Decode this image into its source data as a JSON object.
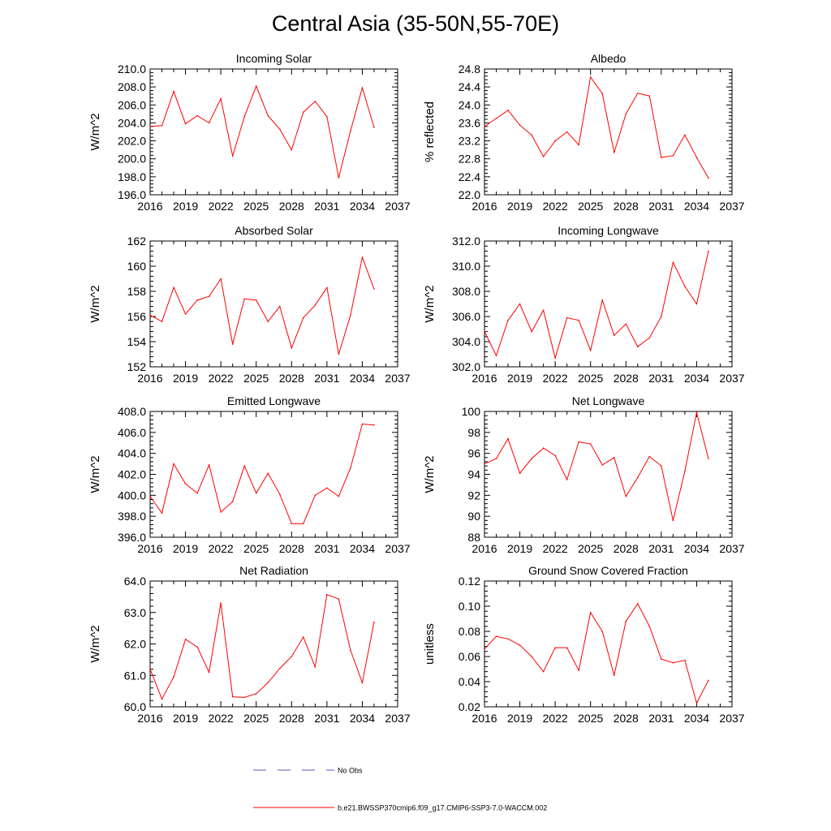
{
  "title": "Central Asia (35-50N,55-70E)",
  "colors": {
    "model": "#ff0000",
    "obs": "#5555cc",
    "axis": "#000000"
  },
  "legend": {
    "obs_label": "No Obs",
    "model_label": "b.e21.BWSSP370cmip6.f09_g17.CMIP6-SSP3-7.0-WACCM.002"
  },
  "chart_data": [
    {
      "type": "line",
      "title": "Incoming Solar",
      "ylabel": "W/m^2",
      "xlim": [
        2016,
        2037
      ],
      "xticks": [
        "2016",
        "2019",
        "2022",
        "2025",
        "2028",
        "2031",
        "2034",
        "2037"
      ],
      "ylim": [
        196,
        210
      ],
      "yticks": [
        "196.0",
        "198.0",
        "200.0",
        "202.0",
        "204.0",
        "206.0",
        "208.0",
        "210.0"
      ],
      "series": [
        {
          "name": "b.e21.BWSSP370cmip6.f09_g17.CMIP6-SSP3-7.0-WACCM.002",
          "x": [
            2016,
            2017,
            2018,
            2019,
            2020,
            2021,
            2022,
            2023,
            2024,
            2025,
            2026,
            2027,
            2028,
            2029,
            2030,
            2031,
            2032,
            2033,
            2034,
            2035
          ],
          "y": [
            203.6,
            203.7,
            207.5,
            203.9,
            204.8,
            204.0,
            206.7,
            200.3,
            204.7,
            208.1,
            204.8,
            203.3,
            201.0,
            205.2,
            206.4,
            204.7,
            197.9,
            203.1,
            207.9,
            203.5
          ]
        }
      ]
    },
    {
      "type": "line",
      "title": "Albedo",
      "ylabel": "% reflected",
      "xlim": [
        2016,
        2037
      ],
      "xticks": [
        "2016",
        "2019",
        "2022",
        "2025",
        "2028",
        "2031",
        "2034",
        "2037"
      ],
      "ylim": [
        22.0,
        24.8
      ],
      "yticks": [
        "22.0",
        "22.4",
        "22.8",
        "23.2",
        "23.6",
        "24.0",
        "24.4",
        "24.8"
      ],
      "series": [
        {
          "name": "b.e21.BWSSP370cmip6.f09_g17.CMIP6-SSP3-7.0-WACCM.002",
          "x": [
            2016,
            2017,
            2018,
            2019,
            2020,
            2021,
            2022,
            2023,
            2024,
            2025,
            2026,
            2027,
            2028,
            2029,
            2030,
            2031,
            2032,
            2033,
            2034,
            2035
          ],
          "y": [
            23.52,
            23.7,
            23.88,
            23.55,
            23.33,
            22.85,
            23.2,
            23.4,
            23.11,
            24.62,
            24.25,
            22.94,
            23.8,
            24.26,
            24.2,
            22.83,
            22.87,
            23.33,
            22.83,
            22.37
          ]
        }
      ]
    },
    {
      "type": "line",
      "title": "Absorbed Solar",
      "ylabel": "W/m^2",
      "xlim": [
        2016,
        2037
      ],
      "xticks": [
        "2016",
        "2019",
        "2022",
        "2025",
        "2028",
        "2031",
        "2034",
        "2037"
      ],
      "ylim": [
        152,
        162
      ],
      "yticks": [
        "152",
        "154",
        "156",
        "158",
        "160",
        "162"
      ],
      "series": [
        {
          "name": "b.e21.BWSSP370cmip6.f09_g17.CMIP6-SSP3-7.0-WACCM.002",
          "x": [
            2016,
            2017,
            2018,
            2019,
            2020,
            2021,
            2022,
            2023,
            2024,
            2025,
            2026,
            2027,
            2028,
            2029,
            2030,
            2031,
            2032,
            2033,
            2034,
            2035
          ],
          "y": [
            156.1,
            155.6,
            158.3,
            156.2,
            157.3,
            157.6,
            159.0,
            153.8,
            157.4,
            157.3,
            155.6,
            156.8,
            153.5,
            155.9,
            156.9,
            158.3,
            153.0,
            156.1,
            160.7,
            158.2
          ]
        }
      ]
    },
    {
      "type": "line",
      "title": "Incoming Longwave",
      "ylabel": "W/m^2",
      "xlim": [
        2016,
        2037
      ],
      "xticks": [
        "2016",
        "2019",
        "2022",
        "2025",
        "2028",
        "2031",
        "2034",
        "2037"
      ],
      "ylim": [
        302,
        312
      ],
      "yticks": [
        "302.0",
        "304.0",
        "306.0",
        "308.0",
        "310.0",
        "312.0"
      ],
      "series": [
        {
          "name": "b.e21.BWSSP370cmip6.f09_g17.CMIP6-SSP3-7.0-WACCM.002",
          "x": [
            2016,
            2017,
            2018,
            2019,
            2020,
            2021,
            2022,
            2023,
            2024,
            2025,
            2026,
            2027,
            2028,
            2029,
            2030,
            2031,
            2032,
            2033,
            2034,
            2035
          ],
          "y": [
            304.8,
            302.9,
            305.7,
            307.0,
            304.8,
            306.5,
            302.7,
            305.9,
            305.7,
            303.3,
            307.3,
            304.5,
            305.4,
            303.6,
            304.3,
            306.0,
            310.3,
            308.4,
            307.0,
            311.2
          ]
        }
      ]
    },
    {
      "type": "line",
      "title": "Emitted Longwave",
      "ylabel": "W/m^2",
      "xlim": [
        2016,
        2037
      ],
      "xticks": [
        "2016",
        "2019",
        "2022",
        "2025",
        "2028",
        "2031",
        "2034",
        "2037"
      ],
      "ylim": [
        396,
        408
      ],
      "yticks": [
        "396.0",
        "398.0",
        "400.0",
        "402.0",
        "404.0",
        "406.0",
        "408.0"
      ],
      "series": [
        {
          "name": "b.e21.BWSSP370cmip6.f09_g17.CMIP6-SSP3-7.0-WACCM.002",
          "x": [
            2016,
            2017,
            2018,
            2019,
            2020,
            2021,
            2022,
            2023,
            2024,
            2025,
            2026,
            2027,
            2028,
            2029,
            2030,
            2031,
            2032,
            2033,
            2034,
            2035
          ],
          "y": [
            399.9,
            398.3,
            403.0,
            401.1,
            400.2,
            402.9,
            398.4,
            399.4,
            402.8,
            400.2,
            402.1,
            400.1,
            397.3,
            397.3,
            400.0,
            400.7,
            399.9,
            402.6,
            406.8,
            406.7
          ]
        }
      ]
    },
    {
      "type": "line",
      "title": "Net Longwave",
      "ylabel": "W/m^2",
      "xlim": [
        2016,
        2037
      ],
      "xticks": [
        "2016",
        "2019",
        "2022",
        "2025",
        "2028",
        "2031",
        "2034",
        "2037"
      ],
      "ylim": [
        88,
        100
      ],
      "yticks": [
        "88",
        "90",
        "92",
        "94",
        "96",
        "98",
        "100"
      ],
      "series": [
        {
          "name": "b.e21.BWSSP370cmip6.f09_g17.CMIP6-SSP3-7.0-WACCM.002",
          "x": [
            2016,
            2017,
            2018,
            2019,
            2020,
            2021,
            2022,
            2023,
            2024,
            2025,
            2026,
            2027,
            2028,
            2029,
            2030,
            2031,
            2032,
            2033,
            2034,
            2035
          ],
          "y": [
            95.0,
            95.5,
            97.4,
            94.1,
            95.5,
            96.5,
            95.8,
            93.5,
            97.1,
            96.9,
            94.9,
            95.6,
            91.9,
            93.7,
            95.7,
            94.8,
            89.6,
            94.3,
            99.9,
            95.5
          ]
        }
      ]
    },
    {
      "type": "line",
      "title": "Net Radiation",
      "ylabel": "W/m^2",
      "xlim": [
        2016,
        2037
      ],
      "xticks": [
        "2016",
        "2019",
        "2022",
        "2025",
        "2028",
        "2031",
        "2034",
        "2037"
      ],
      "ylim": [
        60,
        64
      ],
      "yticks": [
        "60.0",
        "61.0",
        "62.0",
        "63.0",
        "64.0"
      ],
      "series": [
        {
          "name": "b.e21.BWSSP370cmip6.f09_g17.CMIP6-SSP3-7.0-WACCM.002",
          "x": [
            2016,
            2017,
            2018,
            2019,
            2020,
            2021,
            2022,
            2023,
            2024,
            2025,
            2026,
            2027,
            2028,
            2029,
            2030,
            2031,
            2032,
            2033,
            2034,
            2035
          ],
          "y": [
            61.2,
            60.25,
            60.95,
            62.15,
            61.9,
            61.1,
            63.3,
            60.32,
            60.3,
            60.42,
            60.77,
            61.22,
            61.6,
            62.22,
            61.27,
            63.57,
            63.43,
            61.8,
            60.77,
            62.7
          ]
        }
      ]
    },
    {
      "type": "line",
      "title": "Ground Snow Covered Fraction",
      "ylabel": "unitless",
      "xlim": [
        2016,
        2037
      ],
      "xticks": [
        "2016",
        "2019",
        "2022",
        "2025",
        "2028",
        "2031",
        "2034",
        "2037"
      ],
      "ylim": [
        0.02,
        0.12
      ],
      "yticks": [
        "0.02",
        "0.04",
        "0.06",
        "0.08",
        "0.10",
        "0.12"
      ],
      "series": [
        {
          "name": "b.e21.BWSSP370cmip6.f09_g17.CMIP6-SSP3-7.0-WACCM.002",
          "x": [
            2016,
            2017,
            2018,
            2019,
            2020,
            2021,
            2022,
            2023,
            2024,
            2025,
            2026,
            2027,
            2028,
            2029,
            2030,
            2031,
            2032,
            2033,
            2034,
            2035
          ],
          "y": [
            0.066,
            0.076,
            0.074,
            0.069,
            0.06,
            0.048,
            0.067,
            0.067,
            0.049,
            0.095,
            0.08,
            0.045,
            0.088,
            0.102,
            0.084,
            0.058,
            0.055,
            0.057,
            0.023,
            0.041
          ]
        }
      ]
    }
  ]
}
